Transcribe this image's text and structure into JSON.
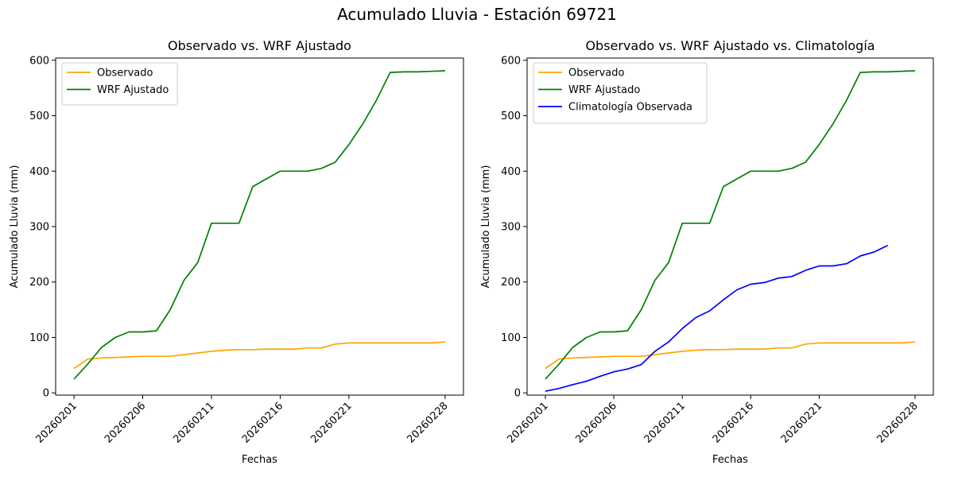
{
  "suptitle": "Acumulado Lluvia - Estación 69721",
  "colors": {
    "observado": "#ffa500",
    "wrf": "#008000",
    "clim": "#0000ff"
  },
  "chart_data": [
    {
      "type": "line",
      "title": "Observado vs. WRF Ajustado",
      "xlabel": "Fechas",
      "ylabel": "Acumulado Lluvia (mm)",
      "xticks": [
        "20260201",
        "20260206",
        "20260211",
        "20260216",
        "20260221",
        "20260228"
      ],
      "yticks": [
        0,
        100,
        200,
        300,
        400,
        500,
        600
      ],
      "ylim": [
        -4,
        604
      ],
      "legend": "top-left",
      "x": [
        "20260201",
        "20260202",
        "20260203",
        "20260204",
        "20260205",
        "20260206",
        "20260207",
        "20260208",
        "20260209",
        "20260210",
        "20260211",
        "20260212",
        "20260213",
        "20260214",
        "20260215",
        "20260216",
        "20260217",
        "20260218",
        "20260219",
        "20260220",
        "20260221",
        "20260222",
        "20260223",
        "20260224",
        "20260225",
        "20260226",
        "20260227",
        "20260228"
      ],
      "series": [
        {
          "name": "Observado",
          "color": "#ffa500",
          "values": [
            44,
            61,
            63,
            64,
            65,
            66,
            66,
            66,
            69,
            72,
            75,
            77,
            78,
            78,
            79,
            79,
            79,
            81,
            81,
            88,
            90,
            90,
            90,
            90,
            90,
            90,
            90,
            92
          ]
        },
        {
          "name": "WRF Ajustado",
          "color": "#008000",
          "values": [
            25,
            52,
            82,
            100,
            110,
            110,
            112,
            150,
            203,
            235,
            306,
            306,
            306,
            372,
            386,
            400,
            400,
            400,
            405,
            416,
            448,
            485,
            528,
            578,
            579,
            579,
            580,
            581
          ]
        }
      ]
    },
    {
      "type": "line",
      "title": "Observado vs. WRF Ajustado vs. Climatología",
      "xlabel": "Fechas",
      "ylabel": "Acumulado Lluvia (mm)",
      "xticks": [
        "20260201",
        "20260206",
        "20260211",
        "20260216",
        "20260221",
        "20260228"
      ],
      "yticks": [
        0,
        100,
        200,
        300,
        400,
        500,
        600
      ],
      "ylim": [
        -4,
        604
      ],
      "legend": "top-left",
      "x": [
        "20260201",
        "20260202",
        "20260203",
        "20260204",
        "20260205",
        "20260206",
        "20260207",
        "20260208",
        "20260209",
        "20260210",
        "20260211",
        "20260212",
        "20260213",
        "20260214",
        "20260215",
        "20260216",
        "20260217",
        "20260218",
        "20260219",
        "20260220",
        "20260221",
        "20260222",
        "20260223",
        "20260224",
        "20260225",
        "20260226",
        "20260227",
        "20260228"
      ],
      "series": [
        {
          "name": "Observado",
          "color": "#ffa500",
          "values": [
            44,
            61,
            63,
            64,
            65,
            66,
            66,
            66,
            69,
            72,
            75,
            77,
            78,
            78,
            79,
            79,
            79,
            81,
            81,
            88,
            90,
            90,
            90,
            90,
            90,
            90,
            90,
            92
          ]
        },
        {
          "name": "WRF Ajustado",
          "color": "#008000",
          "values": [
            25,
            52,
            82,
            100,
            110,
            110,
            112,
            150,
            203,
            235,
            306,
            306,
            306,
            372,
            386,
            400,
            400,
            400,
            405,
            416,
            448,
            485,
            528,
            578,
            579,
            579,
            580,
            581
          ]
        },
        {
          "name": "Climatología Observada",
          "color": "#0000ff",
          "values": [
            3,
            8,
            15,
            21,
            30,
            38,
            43,
            51,
            75,
            92,
            116,
            136,
            148,
            168,
            186,
            196,
            199,
            207,
            210,
            221,
            229,
            229,
            233,
            247,
            254,
            266,
            null,
            null
          ]
        }
      ]
    }
  ]
}
